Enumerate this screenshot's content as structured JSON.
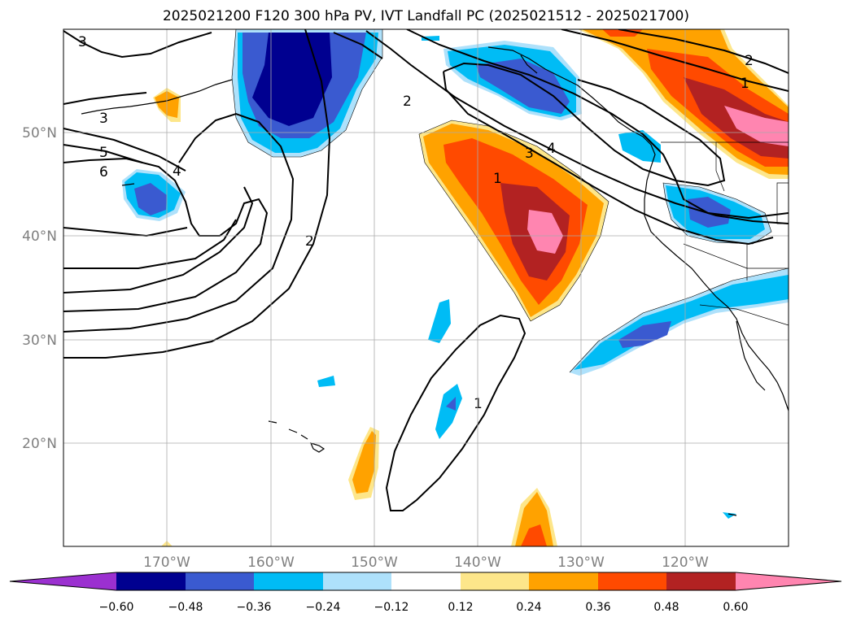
{
  "title": "2025021200 F120 300 hPa PV, IVT Landfall PC (2025021512 - 2025021700)",
  "lon_ticks": [
    "170°W",
    "160°W",
    "150°W",
    "140°W",
    "130°W",
    "120°W"
  ],
  "lat_ticks": [
    "50°N",
    "40°N",
    "30°N",
    "20°N"
  ],
  "colorbar": {
    "ticks": [
      "−0.60",
      "−0.48",
      "−0.36",
      "−0.24",
      "−0.12",
      "0.12",
      "0.24",
      "0.36",
      "0.48",
      "0.60"
    ],
    "colors": [
      "#9b30d0",
      "#000090",
      "#3a5ad0",
      "#00bcf5",
      "#aee1fb",
      "#ffffff",
      "#fde68a",
      "#ffa200",
      "#ff4a00",
      "#b22222",
      "#ff85b0",
      "#ff85b0"
    ]
  },
  "contour_labels": [
    "3",
    "3",
    "5",
    "6",
    "4",
    "2",
    "2",
    "3",
    "4",
    "1",
    "2",
    "1",
    "1"
  ],
  "chart_data": {
    "type": "map",
    "projection": "PlateCarree",
    "lon_range": [
      -180,
      -110
    ],
    "lat_range": [
      10,
      60
    ],
    "shading": "IVT Landfall PC",
    "contours": "300 hPa PV",
    "colorbar_levels": [
      -0.6,
      -0.48,
      -0.36,
      -0.24,
      -0.12,
      0.12,
      0.24,
      0.36,
      0.48,
      0.6
    ]
  }
}
